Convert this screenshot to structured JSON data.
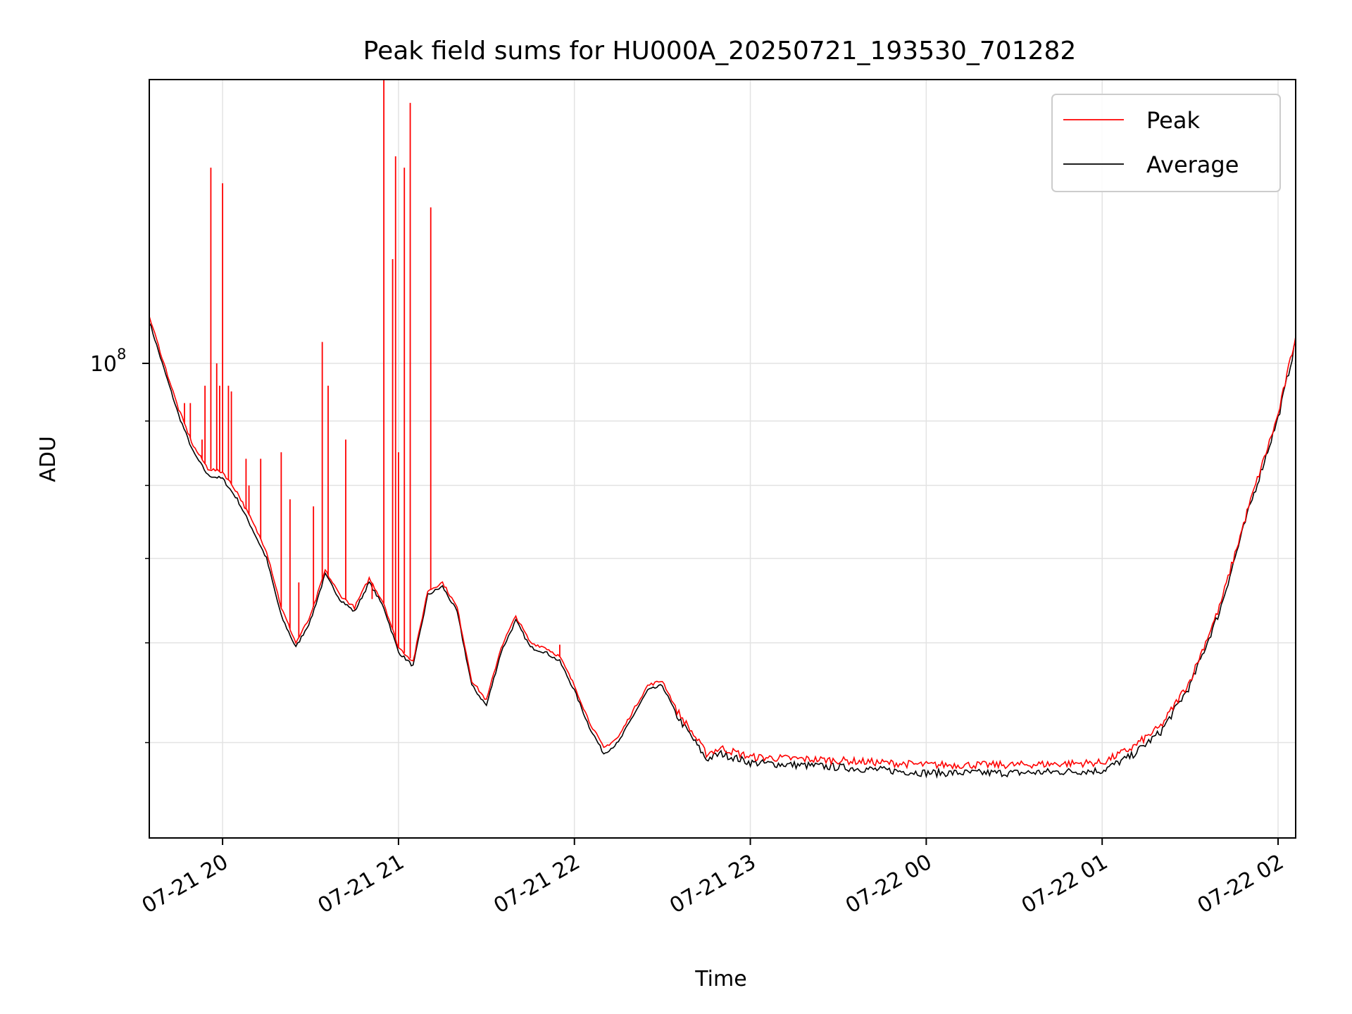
{
  "chart_data": {
    "type": "line",
    "title": "Peak field sums for HU000A_20250721_193530_701282",
    "xlabel": "Time",
    "ylabel": "ADU",
    "y_scale": "log",
    "grid": true,
    "legend_placement": "top-right",
    "xlim": [
      "2025-07-21 19:35",
      "2025-07-22 02:06"
    ],
    "ylim": [
      42000000.0,
      168000000.0
    ],
    "x_ticks": [
      {
        "label": "07-21 20",
        "t": "2025-07-21 20:00"
      },
      {
        "label": "07-21 21",
        "t": "2025-07-21 21:00"
      },
      {
        "label": "07-21 22",
        "t": "2025-07-21 22:00"
      },
      {
        "label": "07-21 23",
        "t": "2025-07-21 23:00"
      },
      {
        "label": "07-22 00",
        "t": "2025-07-22 00:00"
      },
      {
        "label": "07-22 01",
        "t": "2025-07-22 01:00"
      },
      {
        "label": "07-22 02",
        "t": "2025-07-22 02:00"
      }
    ],
    "y_ticks": [
      {
        "label": "10",
        "exp": "8",
        "value": 100000000
      }
    ],
    "series": [
      {
        "name": "Peak",
        "color": "#ff0000",
        "points": [
          [
            "2025-07-21 19:35",
            109000000.0
          ],
          [
            "2025-07-21 19:40",
            100000000.0
          ],
          [
            "2025-07-21 19:45",
            92000000.0
          ],
          [
            "2025-07-21 19:50",
            86000000.0
          ],
          [
            "2025-07-21 19:55",
            82500000.0
          ],
          [
            "2025-07-21 20:00",
            82000000.0
          ],
          [
            "2025-07-21 20:05",
            79000000.0
          ],
          [
            "2025-07-21 20:10",
            75000000.0
          ],
          [
            "2025-07-21 20:15",
            71000000.0
          ],
          [
            "2025-07-21 20:20",
            64000000.0
          ],
          [
            "2025-07-21 20:25",
            60000000.0
          ],
          [
            "2025-07-21 20:30",
            63000000.0
          ],
          [
            "2025-07-21 20:35",
            68500000.0
          ],
          [
            "2025-07-21 20:40",
            65500000.0
          ],
          [
            "2025-07-21 20:45",
            64000000.0
          ],
          [
            "2025-07-21 20:50",
            67500000.0
          ],
          [
            "2025-07-21 20:55",
            64500000.0
          ],
          [
            "2025-07-21 21:00",
            59500000.0
          ],
          [
            "2025-07-21 21:05",
            58000000.0
          ],
          [
            "2025-07-21 21:10",
            66000000.0
          ],
          [
            "2025-07-21 21:15",
            67000000.0
          ],
          [
            "2025-07-21 21:20",
            64000000.0
          ],
          [
            "2025-07-21 21:25",
            56000000.0
          ],
          [
            "2025-07-21 21:30",
            54000000.0
          ],
          [
            "2025-07-21 21:35",
            59500000.0
          ],
          [
            "2025-07-21 21:40",
            63000000.0
          ],
          [
            "2025-07-21 21:45",
            60000000.0
          ],
          [
            "2025-07-21 21:50",
            59500000.0
          ],
          [
            "2025-07-21 21:55",
            58500000.0
          ],
          [
            "2025-07-21 22:00",
            55500000.0
          ],
          [
            "2025-07-21 22:05",
            52000000.0
          ],
          [
            "2025-07-21 22:10",
            49500000.0
          ],
          [
            "2025-07-21 22:15",
            50500000.0
          ],
          [
            "2025-07-21 22:20",
            53000000.0
          ],
          [
            "2025-07-21 22:25",
            55500000.0
          ],
          [
            "2025-07-21 22:30",
            56000000.0
          ],
          [
            "2025-07-21 22:35",
            53000000.0
          ],
          [
            "2025-07-21 22:40",
            51000000.0
          ],
          [
            "2025-07-21 22:45",
            49000000.0
          ],
          [
            "2025-07-21 22:50",
            49500000.0
          ],
          [
            "2025-07-21 23:00",
            48700000.0
          ],
          [
            "2025-07-21 23:30",
            48400000.0
          ],
          [
            "2025-07-22 00:00",
            48000000.0
          ],
          [
            "2025-07-22 00:30",
            48000000.0
          ],
          [
            "2025-07-22 01:00",
            48200000.0
          ],
          [
            "2025-07-22 01:10",
            49500000.0
          ],
          [
            "2025-07-22 01:20",
            51500000.0
          ],
          [
            "2025-07-22 01:30",
            56000000.0
          ],
          [
            "2025-07-22 01:40",
            64000000.0
          ],
          [
            "2025-07-22 01:50",
            77000000.0
          ],
          [
            "2025-07-22 02:00",
            91000000.0
          ],
          [
            "2025-07-22 02:06",
            105000000.0
          ]
        ],
        "spikes": [
          [
            "2025-07-21 19:47",
            93000000.0
          ],
          [
            "2025-07-21 19:49",
            93000000.0
          ],
          [
            "2025-07-21 19:53",
            87000000.0
          ],
          [
            "2025-07-21 19:54",
            96000000.0
          ],
          [
            "2025-07-21 19:56",
            143000000.0
          ],
          [
            "2025-07-21 19:58",
            100000000.0
          ],
          [
            "2025-07-21 19:59",
            96000000.0
          ],
          [
            "2025-07-21 20:00",
            139000000.0
          ],
          [
            "2025-07-21 20:02",
            96000000.0
          ],
          [
            "2025-07-21 20:03",
            95000000.0
          ],
          [
            "2025-07-21 20:08",
            84000000.0
          ],
          [
            "2025-07-21 20:09",
            80000000.0
          ],
          [
            "2025-07-21 20:13",
            84000000.0
          ],
          [
            "2025-07-21 20:20",
            85000000.0
          ],
          [
            "2025-07-21 20:23",
            78000000.0
          ],
          [
            "2025-07-21 20:26",
            67000000.0
          ],
          [
            "2025-07-21 20:31",
            77000000.0
          ],
          [
            "2025-07-21 20:34",
            104000000.0
          ],
          [
            "2025-07-21 20:36",
            96000000.0
          ],
          [
            "2025-07-21 20:42",
            87000000.0
          ],
          [
            "2025-07-21 20:51",
            65000000.0
          ],
          [
            "2025-07-21 20:55",
            168000000.0
          ],
          [
            "2025-07-21 20:58",
            121000000.0
          ],
          [
            "2025-07-21 20:59",
            146000000.0
          ],
          [
            "2025-07-21 21:00",
            85000000.0
          ],
          [
            "2025-07-21 21:02",
            143000000.0
          ],
          [
            "2025-07-21 21:04",
            161000000.0
          ],
          [
            "2025-07-21 21:11",
            133000000.0
          ],
          [
            "2025-07-21 21:55",
            59800000.0
          ]
        ]
      },
      {
        "name": "Average",
        "color": "#000000",
        "points": [
          [
            "2025-07-21 19:35",
            108000000.0
          ],
          [
            "2025-07-21 19:40",
            99000000.0
          ],
          [
            "2025-07-21 19:45",
            91000000.0
          ],
          [
            "2025-07-21 19:50",
            85000000.0
          ],
          [
            "2025-07-21 19:55",
            81500000.0
          ],
          [
            "2025-07-21 20:00",
            81000000.0
          ],
          [
            "2025-07-21 20:05",
            78000000.0
          ],
          [
            "2025-07-21 20:10",
            74000000.0
          ],
          [
            "2025-07-21 20:15",
            70000000.0
          ],
          [
            "2025-07-21 20:20",
            63000000.0
          ],
          [
            "2025-07-21 20:25",
            59500000.0
          ],
          [
            "2025-07-21 20:30",
            62500000.0
          ],
          [
            "2025-07-21 20:35",
            68000000.0
          ],
          [
            "2025-07-21 20:40",
            65000000.0
          ],
          [
            "2025-07-21 20:45",
            63500000.0
          ],
          [
            "2025-07-21 20:50",
            67000000.0
          ],
          [
            "2025-07-21 20:55",
            64000000.0
          ],
          [
            "2025-07-21 21:00",
            59000000.0
          ],
          [
            "2025-07-21 21:05",
            57500000.0
          ],
          [
            "2025-07-21 21:10",
            65500000.0
          ],
          [
            "2025-07-21 21:15",
            66500000.0
          ],
          [
            "2025-07-21 21:20",
            63500000.0
          ],
          [
            "2025-07-21 21:25",
            55500000.0
          ],
          [
            "2025-07-21 21:30",
            53500000.0
          ],
          [
            "2025-07-21 21:35",
            59000000.0
          ],
          [
            "2025-07-21 21:40",
            62500000.0
          ],
          [
            "2025-07-21 21:45",
            59500000.0
          ],
          [
            "2025-07-21 21:50",
            59000000.0
          ],
          [
            "2025-07-21 21:55",
            58000000.0
          ],
          [
            "2025-07-21 22:00",
            55000000.0
          ],
          [
            "2025-07-21 22:05",
            51500000.0
          ],
          [
            "2025-07-21 22:10",
            49000000.0
          ],
          [
            "2025-07-21 22:15",
            50000000.0
          ],
          [
            "2025-07-21 22:20",
            52500000.0
          ],
          [
            "2025-07-21 22:25",
            55000000.0
          ],
          [
            "2025-07-21 22:30",
            55500000.0
          ],
          [
            "2025-07-21 22:35",
            52500000.0
          ],
          [
            "2025-07-21 22:40",
            50500000.0
          ],
          [
            "2025-07-21 22:45",
            48500000.0
          ],
          [
            "2025-07-21 22:50",
            49000000.0
          ],
          [
            "2025-07-21 23:00",
            48200000.0
          ],
          [
            "2025-07-21 23:30",
            47800000.0
          ],
          [
            "2025-07-22 00:00",
            47300000.0
          ],
          [
            "2025-07-22 00:30",
            47300000.0
          ],
          [
            "2025-07-22 01:00",
            47500000.0
          ],
          [
            "2025-07-22 01:10",
            48800000.0
          ],
          [
            "2025-07-22 01:20",
            51000000.0
          ],
          [
            "2025-07-22 01:30",
            55500000.0
          ],
          [
            "2025-07-22 01:40",
            63500000.0
          ],
          [
            "2025-07-22 01:50",
            76500000.0
          ],
          [
            "2025-07-22 02:00",
            90500000.0
          ],
          [
            "2025-07-22 02:06",
            104000000.0
          ]
        ]
      }
    ]
  }
}
